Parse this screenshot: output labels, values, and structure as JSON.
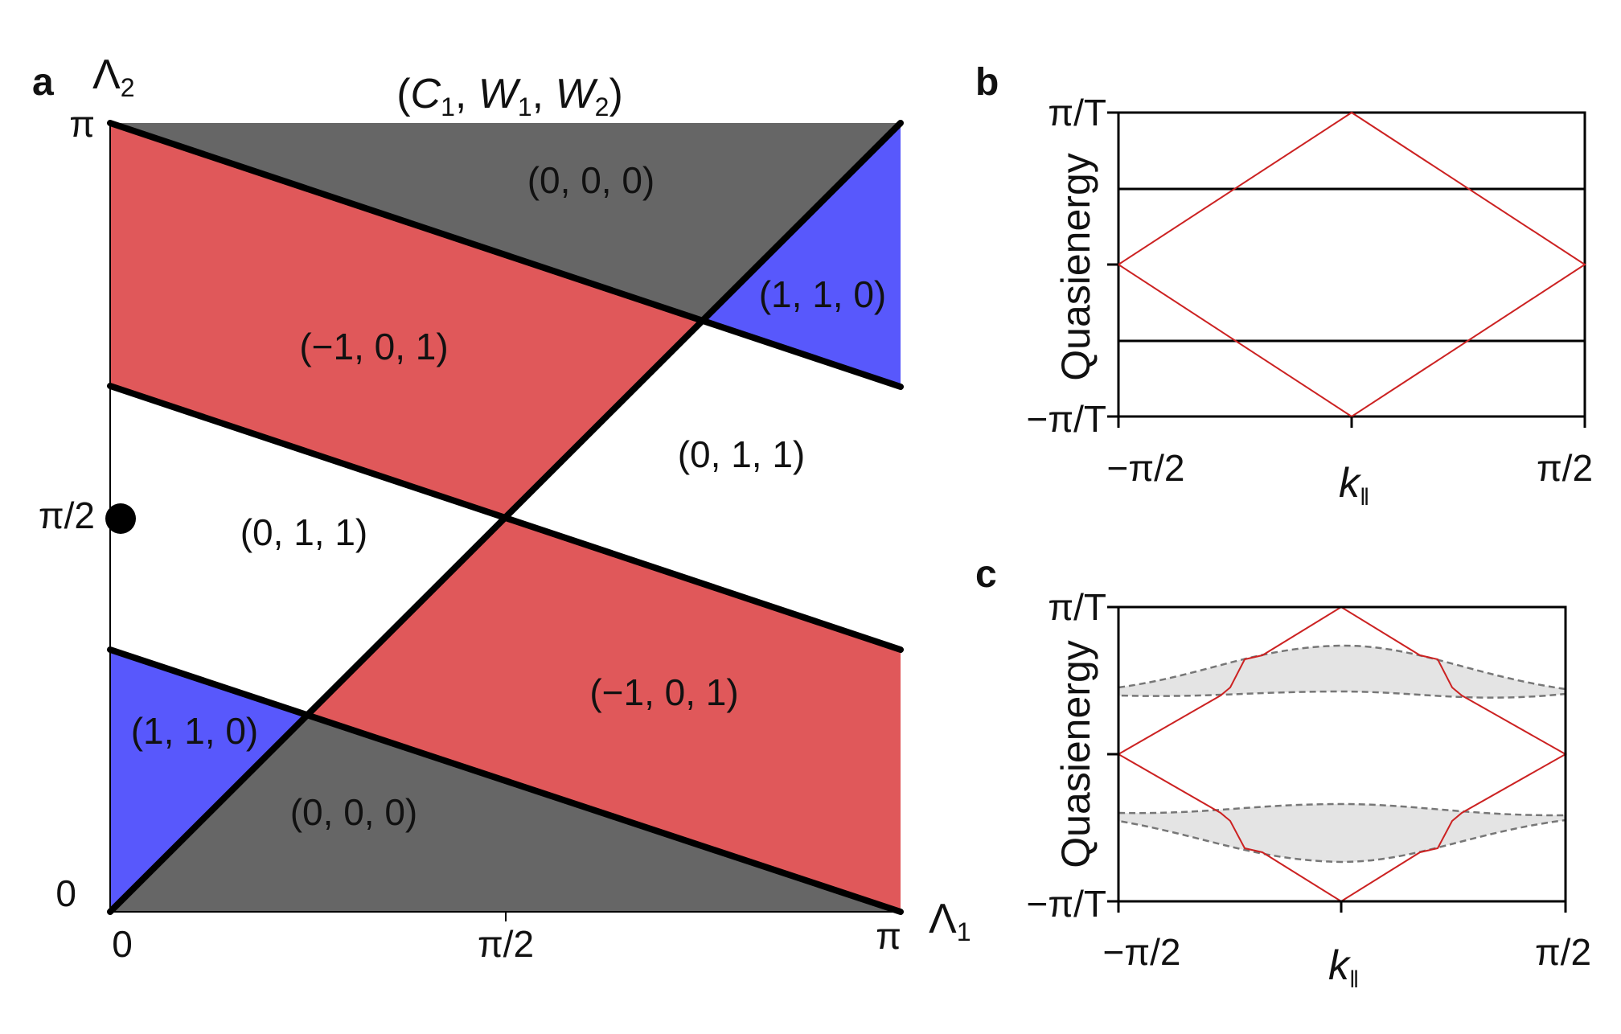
{
  "panel_a": {
    "letter": "a",
    "title": "(C1, W1, W2)",
    "title_parts": {
      "open": "(",
      "c": "C",
      "c_sub": "1",
      "sep1": ", ",
      "w1": "W",
      "w1_sub": "1",
      "sep2": ", ",
      "w2": "W",
      "w2_sub": "2",
      "close": ")"
    },
    "x_axis_label": "Λ1",
    "x_axis_symbol": "Λ",
    "x_axis_sub": "1",
    "y_axis_label": "Λ2",
    "y_axis_symbol": "Λ",
    "y_axis_sub": "2",
    "x_ticks": [
      "0",
      "π/2",
      "π"
    ],
    "y_ticks": [
      "0",
      "π/2",
      "π"
    ],
    "marker_label": "π/2 point",
    "regions": [
      {
        "label": "(0, 0, 0)",
        "color": "#666666"
      },
      {
        "label": "(1, 1, 0)",
        "color": "#5858fc"
      },
      {
        "label": "(−1, 0, 1)",
        "color": "#e0585a"
      },
      {
        "label": "(0, 1, 1)",
        "color": "#ffffff"
      },
      {
        "label": "(0, 1, 1)",
        "color": "#ffffff"
      },
      {
        "label": "(−1, 0, 1)",
        "color": "#e0585a"
      },
      {
        "label": "(1, 1, 0)",
        "color": "#5858fc"
      },
      {
        "label": "(0, 0, 0)",
        "color": "#666666"
      }
    ]
  },
  "panel_b": {
    "letter": "b",
    "ylabel": "Quasienergy",
    "xlabel": "k‖",
    "xlabel_main": "k",
    "xlabel_sub": "‖",
    "y_ticks": [
      "π/T",
      "−π/T"
    ],
    "x_ticks": [
      "−π/2",
      "π/2"
    ],
    "edge_color": "#cc2222"
  },
  "panel_c": {
    "letter": "c",
    "ylabel": "Quasienergy",
    "xlabel": "k‖",
    "xlabel_main": "k",
    "xlabel_sub": "‖",
    "y_ticks": [
      "π/T",
      "−π/T"
    ],
    "x_ticks": [
      "−π/2",
      "π/2"
    ],
    "edge_color": "#cc2222",
    "bulk_fill": "#e4e4e4",
    "bulk_line": "#777777"
  }
}
